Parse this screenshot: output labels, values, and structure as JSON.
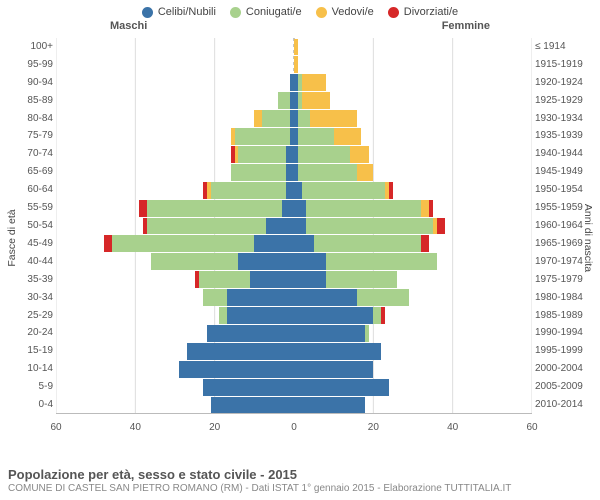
{
  "legend": [
    {
      "label": "Celibi/Nubili",
      "color": "#3b73a8"
    },
    {
      "label": "Coniugati/e",
      "color": "#a8d18d"
    },
    {
      "label": "Vedovi/e",
      "color": "#f7c04a"
    },
    {
      "label": "Divorziati/e",
      "color": "#d62728"
    }
  ],
  "header": {
    "male": "Maschi",
    "female": "Femmine",
    "year_prefix": "≤ 1914"
  },
  "axis": {
    "left_title": "Fasce di età",
    "right_title": "Anni di nascita",
    "x_max": 60,
    "x_ticks": [
      60,
      40,
      20,
      0,
      20,
      40,
      60
    ]
  },
  "colors": {
    "celibi": "#3b73a8",
    "coniugati": "#a8d18d",
    "vedovi": "#f7c04a",
    "divorziati": "#d62728",
    "grid": "#dddddd",
    "center": "#888888",
    "bg": "#ffffff"
  },
  "age_labels": [
    "100+",
    "95-99",
    "90-94",
    "85-89",
    "80-84",
    "75-79",
    "70-74",
    "65-69",
    "60-64",
    "55-59",
    "50-54",
    "45-49",
    "40-44",
    "35-39",
    "30-34",
    "25-29",
    "20-24",
    "15-19",
    "10-14",
    "5-9",
    "0-4"
  ],
  "birth_labels": [
    "≤ 1914",
    "1915-1919",
    "1920-1924",
    "1925-1929",
    "1930-1934",
    "1935-1939",
    "1940-1944",
    "1945-1949",
    "1950-1954",
    "1955-1959",
    "1960-1964",
    "1965-1969",
    "1970-1974",
    "1975-1979",
    "1980-1984",
    "1985-1989",
    "1990-1994",
    "1995-1999",
    "2000-2004",
    "2005-2009",
    "2010-2014"
  ],
  "rows": [
    {
      "m": {
        "c": 0,
        "k": 0,
        "v": 0,
        "d": 0
      },
      "f": {
        "c": 0,
        "k": 0,
        "v": 1,
        "d": 0
      }
    },
    {
      "m": {
        "c": 0,
        "k": 0,
        "v": 0,
        "d": 0
      },
      "f": {
        "c": 0,
        "k": 0,
        "v": 1,
        "d": 0
      }
    },
    {
      "m": {
        "c": 1,
        "k": 0,
        "v": 0,
        "d": 0
      },
      "f": {
        "c": 1,
        "k": 1,
        "v": 6,
        "d": 0
      }
    },
    {
      "m": {
        "c": 1,
        "k": 3,
        "v": 0,
        "d": 0
      },
      "f": {
        "c": 1,
        "k": 1,
        "v": 7,
        "d": 0
      }
    },
    {
      "m": {
        "c": 1,
        "k": 7,
        "v": 2,
        "d": 0
      },
      "f": {
        "c": 1,
        "k": 3,
        "v": 12,
        "d": 0
      }
    },
    {
      "m": {
        "c": 1,
        "k": 14,
        "v": 1,
        "d": 0
      },
      "f": {
        "c": 1,
        "k": 9,
        "v": 7,
        "d": 0
      }
    },
    {
      "m": {
        "c": 2,
        "k": 12,
        "v": 1,
        "d": 1
      },
      "f": {
        "c": 1,
        "k": 13,
        "v": 5,
        "d": 0
      }
    },
    {
      "m": {
        "c": 2,
        "k": 14,
        "v": 0,
        "d": 0
      },
      "f": {
        "c": 1,
        "k": 15,
        "v": 4,
        "d": 0
      }
    },
    {
      "m": {
        "c": 2,
        "k": 19,
        "v": 1,
        "d": 1
      },
      "f": {
        "c": 2,
        "k": 21,
        "v": 1,
        "d": 1
      }
    },
    {
      "m": {
        "c": 3,
        "k": 34,
        "v": 0,
        "d": 2
      },
      "f": {
        "c": 3,
        "k": 29,
        "v": 2,
        "d": 1
      }
    },
    {
      "m": {
        "c": 7,
        "k": 30,
        "v": 0,
        "d": 1
      },
      "f": {
        "c": 3,
        "k": 32,
        "v": 1,
        "d": 2
      }
    },
    {
      "m": {
        "c": 10,
        "k": 36,
        "v": 0,
        "d": 2
      },
      "f": {
        "c": 5,
        "k": 27,
        "v": 0,
        "d": 2
      }
    },
    {
      "m": {
        "c": 14,
        "k": 22,
        "v": 0,
        "d": 0
      },
      "f": {
        "c": 8,
        "k": 28,
        "v": 0,
        "d": 0
      }
    },
    {
      "m": {
        "c": 11,
        "k": 13,
        "v": 0,
        "d": 1
      },
      "f": {
        "c": 8,
        "k": 18,
        "v": 0,
        "d": 0
      }
    },
    {
      "m": {
        "c": 17,
        "k": 6,
        "v": 0,
        "d": 0
      },
      "f": {
        "c": 16,
        "k": 13,
        "v": 0,
        "d": 0
      }
    },
    {
      "m": {
        "c": 17,
        "k": 2,
        "v": 0,
        "d": 0
      },
      "f": {
        "c": 20,
        "k": 2,
        "v": 0,
        "d": 1
      }
    },
    {
      "m": {
        "c": 22,
        "k": 0,
        "v": 0,
        "d": 0
      },
      "f": {
        "c": 18,
        "k": 1,
        "v": 0,
        "d": 0
      }
    },
    {
      "m": {
        "c": 27,
        "k": 0,
        "v": 0,
        "d": 0
      },
      "f": {
        "c": 22,
        "k": 0,
        "v": 0,
        "d": 0
      }
    },
    {
      "m": {
        "c": 29,
        "k": 0,
        "v": 0,
        "d": 0
      },
      "f": {
        "c": 20,
        "k": 0,
        "v": 0,
        "d": 0
      }
    },
    {
      "m": {
        "c": 23,
        "k": 0,
        "v": 0,
        "d": 0
      },
      "f": {
        "c": 24,
        "k": 0,
        "v": 0,
        "d": 0
      }
    },
    {
      "m": {
        "c": 21,
        "k": 0,
        "v": 0,
        "d": 0
      },
      "f": {
        "c": 18,
        "k": 0,
        "v": 0,
        "d": 0
      }
    }
  ],
  "footer": {
    "title": "Popolazione per età, sesso e stato civile - 2015",
    "sub": "COMUNE DI CASTEL SAN PIETRO ROMANO (RM) - Dati ISTAT 1° gennaio 2015 - Elaborazione TUTTITALIA.IT"
  }
}
